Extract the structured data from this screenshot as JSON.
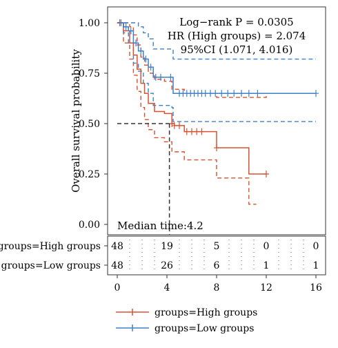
{
  "chart_data": {
    "type": "line",
    "subtype": "kaplan-meier",
    "xlabel": "",
    "ylabel": "Overall survival probability",
    "xlim": [
      0,
      16
    ],
    "ylim": [
      0,
      1
    ],
    "x_ticks": [
      0,
      4,
      8,
      12,
      16
    ],
    "y_ticks": [
      "0.00",
      "0.25",
      "0.50",
      "0.75",
      "1.00"
    ],
    "annotations": {
      "pvalue": "Log−rank P = 0.0305",
      "hr": "HR (High groups) = 2.074",
      "ci": "95%CI (1.071, 4.016)",
      "median": "Median time:4.2"
    },
    "median_time": 4.2,
    "legend_position": "bottom",
    "series": [
      {
        "name": "groups=High groups",
        "color": "#D9502E",
        "steps": [
          [
            0,
            1.0
          ],
          [
            0.5,
            0.96
          ],
          [
            1.0,
            0.9
          ],
          [
            1.3,
            0.84
          ],
          [
            1.6,
            0.77
          ],
          [
            1.9,
            0.7
          ],
          [
            2.2,
            0.65
          ],
          [
            2.5,
            0.6
          ],
          [
            3.0,
            0.56
          ],
          [
            3.8,
            0.55
          ],
          [
            4.4,
            0.5
          ],
          [
            4.6,
            0.49
          ],
          [
            5.4,
            0.46
          ],
          [
            8.0,
            0.38
          ],
          [
            10.6,
            0.25
          ],
          [
            12.0,
            0.25
          ]
        ],
        "upper": [
          [
            0,
            1.0
          ],
          [
            0.5,
            1.0
          ],
          [
            1.0,
            0.98
          ],
          [
            1.3,
            0.94
          ],
          [
            1.6,
            0.89
          ],
          [
            1.9,
            0.83
          ],
          [
            2.2,
            0.79
          ],
          [
            2.5,
            0.75
          ],
          [
            3.0,
            0.72
          ],
          [
            3.8,
            0.71
          ],
          [
            4.4,
            0.67
          ],
          [
            5.4,
            0.65
          ],
          [
            8.0,
            0.63
          ],
          [
            12.0,
            0.65
          ]
        ],
        "lower": [
          [
            0,
            1.0
          ],
          [
            0.5,
            0.9
          ],
          [
            1.0,
            0.82
          ],
          [
            1.3,
            0.74
          ],
          [
            1.6,
            0.66
          ],
          [
            1.9,
            0.58
          ],
          [
            2.2,
            0.52
          ],
          [
            2.5,
            0.47
          ],
          [
            3.0,
            0.43
          ],
          [
            3.8,
            0.41
          ],
          [
            4.4,
            0.36
          ],
          [
            5.4,
            0.32
          ],
          [
            8.0,
            0.23
          ],
          [
            10.6,
            0.1
          ],
          [
            11.2,
            0.1
          ]
        ],
        "censor_x": [
          0.2,
          4.4,
          4.6,
          5.0,
          5.6,
          6.0,
          6.4,
          6.8,
          8.0,
          12.0
        ],
        "risk_table": [
          48,
          19,
          5,
          0,
          0
        ]
      },
      {
        "name": "groups=Low groups",
        "color": "#3D7FCB",
        "steps": [
          [
            0,
            1.0
          ],
          [
            0.5,
            0.98
          ],
          [
            0.9,
            0.96
          ],
          [
            1.3,
            0.9
          ],
          [
            1.7,
            0.86
          ],
          [
            2.1,
            0.82
          ],
          [
            2.5,
            0.78
          ],
          [
            2.9,
            0.73
          ],
          [
            4.4,
            0.73
          ],
          [
            4.5,
            0.65
          ],
          [
            16.0,
            0.65
          ]
        ],
        "upper": [
          [
            0,
            1.0
          ],
          [
            1.3,
            1.0
          ],
          [
            1.7,
            0.98
          ],
          [
            2.1,
            0.95
          ],
          [
            2.5,
            0.92
          ],
          [
            2.9,
            0.87
          ],
          [
            4.4,
            0.87
          ],
          [
            4.5,
            0.82
          ],
          [
            16.0,
            0.82
          ]
        ],
        "lower": [
          [
            0,
            1.0
          ],
          [
            0.5,
            0.95
          ],
          [
            0.9,
            0.9
          ],
          [
            1.3,
            0.8
          ],
          [
            1.7,
            0.76
          ],
          [
            2.1,
            0.7
          ],
          [
            2.5,
            0.65
          ],
          [
            2.9,
            0.59
          ],
          [
            4.4,
            0.58
          ],
          [
            4.5,
            0.51
          ],
          [
            16.0,
            0.51
          ]
        ],
        "censor_x": [
          0.3,
          0.7,
          1.1,
          1.5,
          1.9,
          2.3,
          2.7,
          3.1,
          3.5,
          4.3,
          5.0,
          5.3,
          5.6,
          5.9,
          6.2,
          6.5,
          6.8,
          7.1,
          7.5,
          7.9,
          8.4,
          8.9,
          9.4,
          10.0,
          10.6,
          11.3,
          16.0
        ],
        "risk_table": [
          48,
          26,
          6,
          1,
          1
        ]
      }
    ]
  }
}
